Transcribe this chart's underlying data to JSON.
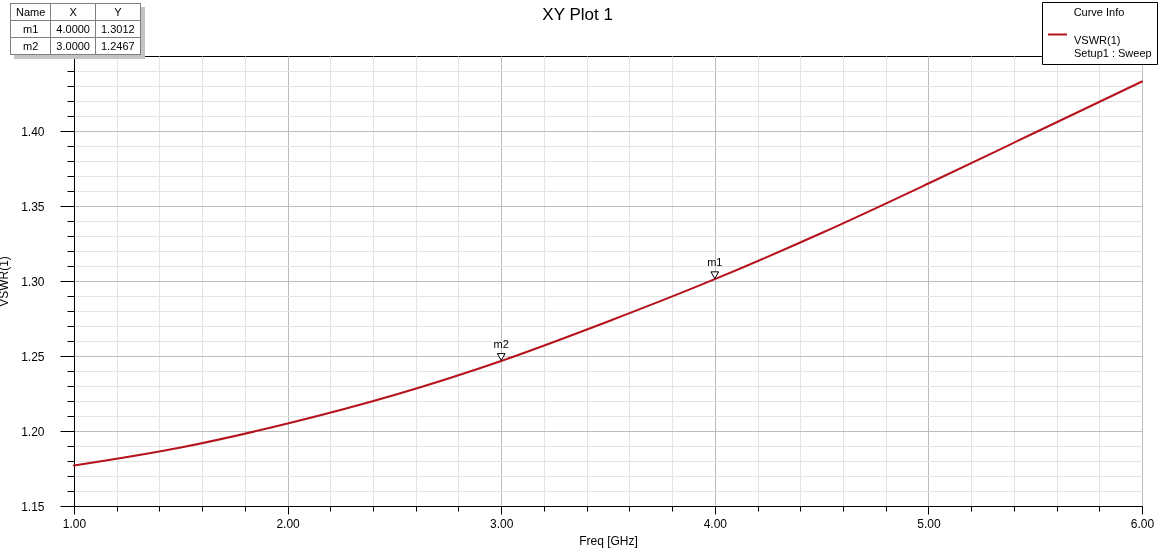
{
  "chart_data": {
    "type": "line",
    "title": "XY Plot 1",
    "xlabel": "Freq [GHz]",
    "ylabel": "VSWR(1)",
    "legend_title": "Curve Info",
    "legend": "top right",
    "grid": true,
    "x": [
      1,
      1.5,
      2,
      2.5,
      3,
      3.5,
      4,
      4.5,
      5,
      5.5,
      6
    ],
    "series": [
      {
        "name": "VSWR(1)\nSetup1 : Sweep",
        "color": "#b5121b",
        "values": [
          1.177,
          1.189,
          1.205,
          1.224,
          1.2467,
          1.273,
          1.3012,
          1.332,
          1.365,
          1.399,
          1.433
        ]
      }
    ],
    "xlim": [
      1,
      6
    ],
    "xticks": [
      {
        "value": 1,
        "label": "1.00"
      },
      {
        "value": 1.2,
        "label": null
      },
      {
        "value": 1.4,
        "label": null
      },
      {
        "value": 1.6,
        "label": null
      },
      {
        "value": 1.8,
        "label": null
      },
      {
        "value": 2,
        "label": "2.00"
      },
      {
        "value": 2.2,
        "label": null
      },
      {
        "value": 2.4,
        "label": null
      },
      {
        "value": 2.6,
        "label": null
      },
      {
        "value": 2.8,
        "label": null
      },
      {
        "value": 3,
        "label": "3.00"
      },
      {
        "value": 3.2,
        "label": null
      },
      {
        "value": 3.4,
        "label": null
      },
      {
        "value": 3.6,
        "label": null
      },
      {
        "value": 3.8,
        "label": null
      },
      {
        "value": 4,
        "label": "4.00"
      },
      {
        "value": 4.2,
        "label": null
      },
      {
        "value": 4.4,
        "label": null
      },
      {
        "value": 4.6,
        "label": null
      },
      {
        "value": 4.8,
        "label": null
      },
      {
        "value": 5,
        "label": "5.00"
      },
      {
        "value": 5.2,
        "label": null
      },
      {
        "value": 5.4,
        "label": null
      },
      {
        "value": 5.6,
        "label": null
      },
      {
        "value": 5.8,
        "label": null
      },
      {
        "value": 6,
        "label": "6.00"
      }
    ],
    "ylim": [
      1.15,
      1.45
    ],
    "yticks": [
      {
        "value": 1.15,
        "label": "1.15"
      },
      {
        "value": 1.16,
        "label": null
      },
      {
        "value": 1.17,
        "label": null
      },
      {
        "value": 1.18,
        "label": null
      },
      {
        "value": 1.19,
        "label": null
      },
      {
        "value": 1.2,
        "label": "1.20"
      },
      {
        "value": 1.21,
        "label": null
      },
      {
        "value": 1.22,
        "label": null
      },
      {
        "value": 1.23,
        "label": null
      },
      {
        "value": 1.24,
        "label": null
      },
      {
        "value": 1.25,
        "label": "1.25"
      },
      {
        "value": 1.26,
        "label": null
      },
      {
        "value": 1.27,
        "label": null
      },
      {
        "value": 1.28,
        "label": null
      },
      {
        "value": 1.29,
        "label": null
      },
      {
        "value": 1.3,
        "label": "1.30"
      },
      {
        "value": 1.31,
        "label": null
      },
      {
        "value": 1.32,
        "label": null
      },
      {
        "value": 1.33,
        "label": null
      },
      {
        "value": 1.34,
        "label": null
      },
      {
        "value": 1.35,
        "label": "1.35"
      },
      {
        "value": 1.36,
        "label": null
      },
      {
        "value": 1.37,
        "label": null
      },
      {
        "value": 1.38,
        "label": null
      },
      {
        "value": 1.39,
        "label": null
      },
      {
        "value": 1.4,
        "label": "1.40"
      },
      {
        "value": 1.41,
        "label": null
      },
      {
        "value": 1.42,
        "label": null
      },
      {
        "value": 1.43,
        "label": null
      },
      {
        "value": 1.44,
        "label": null
      }
    ],
    "annotations": [
      {
        "text": "m1",
        "x": 4,
        "y": 1.3012
      },
      {
        "text": "m2",
        "x": 3,
        "y": 1.2467
      },
      "Name",
      "X",
      "Y",
      "m1",
      "4.0000",
      "1.3012",
      "m2",
      "3.0000",
      "1.2467"
    ]
  }
}
